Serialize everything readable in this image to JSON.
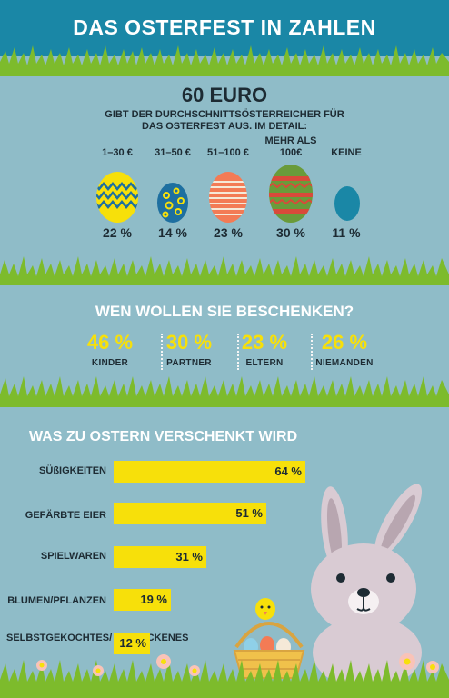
{
  "header": {
    "title": "DAS OSTERFEST IN ZAHLEN"
  },
  "spending": {
    "headline": "60 EURO",
    "subline1": "GIBT DER DURCHSCHNITTSÖSTERREICHER FÜR",
    "subline2": "DAS OSTERFEST AUS. IM DETAIL:",
    "groups": [
      {
        "label": "1–30 €",
        "value": "22 %"
      },
      {
        "label": "31–50 €",
        "value": "14 %"
      },
      {
        "label": "51–100 €",
        "value": "23 %"
      },
      {
        "label1": "MEHR ALS",
        "label2": "100€",
        "value": "30 %"
      },
      {
        "label": "KEINE",
        "value": "11 %"
      }
    ],
    "colors": {
      "yellow": "#f7e00a",
      "blue": "#1e6fa0",
      "coral": "#f37b55",
      "green": "#6a9b3a",
      "red": "#d94a3a",
      "teal": "#1a87a6"
    }
  },
  "recipients": {
    "title": "WEN WOLLEN SIE BESCHENKEN?",
    "items": [
      {
        "value": "46 %",
        "label": "KINDER"
      },
      {
        "value": "30 %",
        "label": "PARTNER"
      },
      {
        "value": "23 %",
        "label": "ELTERN"
      },
      {
        "value": "26 %",
        "label": "NIEMANDEN"
      }
    ]
  },
  "gifts": {
    "title": "WAS ZU OSTERN VERSCHENKT WIRD"
  },
  "chart_data": {
    "type": "bar",
    "orientation": "horizontal",
    "title": "WAS ZU OSTERN VERSCHENKT WIRD",
    "categories": [
      "SÜßIGKEITEN",
      "GEFÄRBTE EIER",
      "SPIELWAREN",
      "BLUMEN/PFLANZEN",
      "SELBSTGEKOCHTES/ -GEBACKENES"
    ],
    "values": [
      64,
      51,
      31,
      19,
      12
    ],
    "value_labels": [
      "64 %",
      "51 %",
      "31 %",
      "19 %",
      "12 %"
    ],
    "unit": "%",
    "xlim": [
      0,
      100
    ],
    "bar_color": "#f7e00a"
  }
}
